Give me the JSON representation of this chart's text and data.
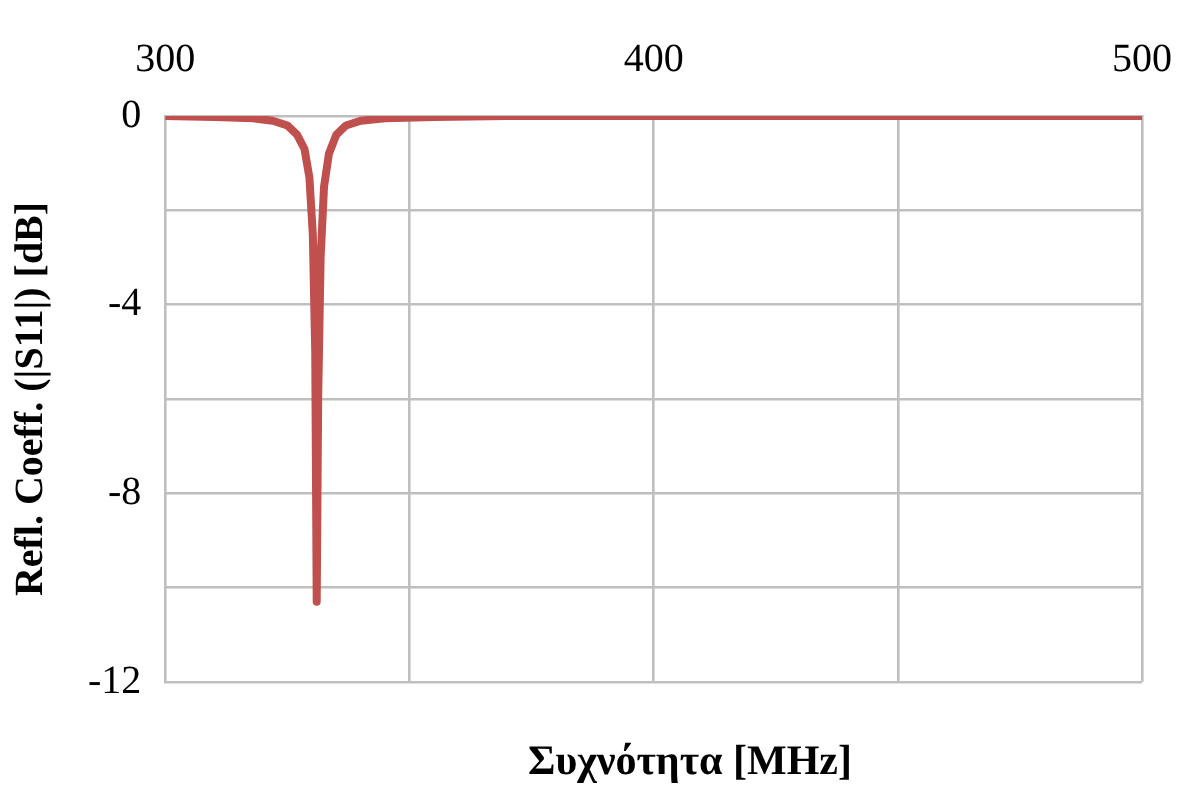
{
  "chart_data": {
    "type": "line",
    "xlabel": "Συχνότητα [MHz]",
    "ylabel": "Refl. Coeff. (|S11|) [dB]",
    "x": [
      300,
      310,
      318,
      322,
      325,
      327,
      328.5,
      329.5,
      330.2,
      330.7,
      331,
      331.3,
      331.8,
      332.5,
      333.5,
      335,
      337,
      340,
      345,
      355,
      370,
      400,
      450,
      500
    ],
    "series": [
      {
        "color": "#c0504d",
        "values": [
          0,
          -0.02,
          -0.05,
          -0.1,
          -0.2,
          -0.4,
          -0.7,
          -1.3,
          -2.5,
          -5,
          -10.3,
          -6,
          -3,
          -1.5,
          -0.8,
          -0.4,
          -0.2,
          -0.1,
          -0.05,
          -0.02,
          0,
          0,
          0,
          0
        ]
      }
    ],
    "xlim": [
      300,
      500
    ],
    "xticks": [
      300,
      {
        "value": 350,
        "label": null
      },
      400,
      {
        "value": 450,
        "label": null
      },
      500
    ],
    "ylim": [
      -12,
      0
    ],
    "yticks": [
      0,
      {
        "value": -2,
        "label": null
      },
      -4,
      {
        "value": -6,
        "label": null
      },
      -8,
      {
        "value": -10,
        "label": null
      },
      -12
    ],
    "grid": true,
    "legend": false,
    "marker": "none",
    "line_style": "solid"
  }
}
